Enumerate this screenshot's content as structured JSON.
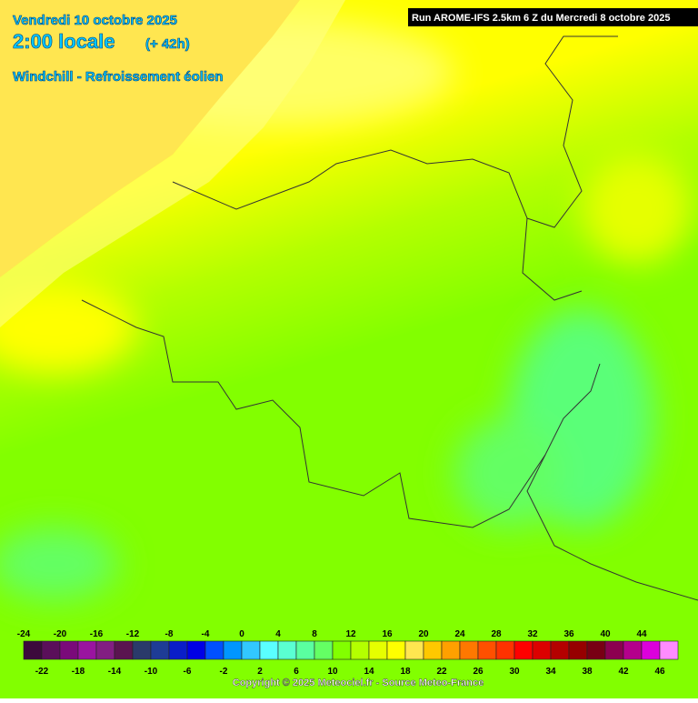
{
  "header": {
    "date": "Vendredi 10 octobre 2025",
    "time": "2:00 locale",
    "offset": "(+ 42h)",
    "variable": "Windchill - Refroissement éolien",
    "run": "Run AROME-IFS 2.5km 6 Z du Mercredi 8 octobre 2025"
  },
  "scale": {
    "values": [
      -24,
      -22,
      -20,
      -18,
      -16,
      -14,
      -12,
      -10,
      -8,
      -6,
      -4,
      -2,
      0,
      2,
      4,
      6,
      8,
      10,
      12,
      14,
      16,
      18,
      20,
      22,
      24,
      26,
      28,
      30,
      32,
      34,
      36,
      38,
      40,
      42,
      44,
      46
    ],
    "colors": [
      "#3c0a3c",
      "#5a0f5a",
      "#7a0a7a",
      "#9a14a0",
      "#821e82",
      "#5a1450",
      "#2a3a6a",
      "#1e3c96",
      "#0a1ec8",
      "#0000e6",
      "#0050ff",
      "#0096ff",
      "#32c8ff",
      "#5affff",
      "#5affd2",
      "#5affa0",
      "#64ff64",
      "#82ff00",
      "#b4ff00",
      "#e6ff00",
      "#ffff00",
      "#ffe650",
      "#ffc800",
      "#ffa000",
      "#ff7800",
      "#ff5000",
      "#ff3200",
      "#ff0000",
      "#dc0000",
      "#b40000",
      "#960000",
      "#780014",
      "#8c0050",
      "#b4008c",
      "#dc00dc",
      "#ff8cff"
    ]
  },
  "footer": {
    "copyright": "Copyright © 2025 Meteociel.fr - Source Meteo-France"
  }
}
